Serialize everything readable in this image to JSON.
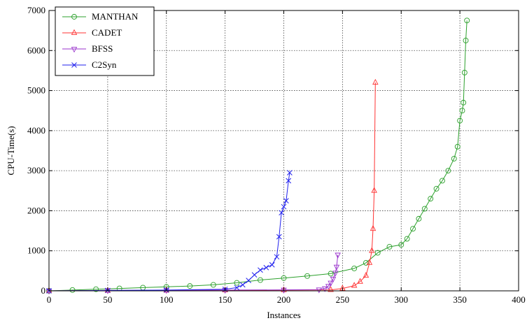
{
  "chart_data": {
    "type": "line",
    "title": "",
    "xlabel": "Instances",
    "ylabel": "CPU-Time(s)",
    "xlim": [
      0,
      400
    ],
    "ylim": [
      0,
      7000
    ],
    "x_ticks": [
      "0",
      "50",
      "100",
      "150",
      "200",
      "250",
      "300",
      "350",
      "400"
    ],
    "y_ticks": [
      "0",
      "1000",
      "2000",
      "3000",
      "4000",
      "5000",
      "6000",
      "7000"
    ],
    "grid": true,
    "legend_position": "top-left",
    "series": [
      {
        "name": "MANTHAN",
        "color": "#2ca02c",
        "marker": "circle",
        "points": [
          [
            0,
            0
          ],
          [
            20,
            20
          ],
          [
            40,
            40
          ],
          [
            60,
            60
          ],
          [
            80,
            80
          ],
          [
            100,
            100
          ],
          [
            120,
            120
          ],
          [
            140,
            150
          ],
          [
            160,
            200
          ],
          [
            180,
            270
          ],
          [
            200,
            320
          ],
          [
            220,
            370
          ],
          [
            240,
            430
          ],
          [
            260,
            560
          ],
          [
            270,
            700
          ],
          [
            280,
            950
          ],
          [
            290,
            1100
          ],
          [
            300,
            1150
          ],
          [
            305,
            1300
          ],
          [
            310,
            1550
          ],
          [
            315,
            1800
          ],
          [
            320,
            2050
          ],
          [
            325,
            2300
          ],
          [
            330,
            2550
          ],
          [
            335,
            2750
          ],
          [
            340,
            3000
          ],
          [
            345,
            3300
          ],
          [
            348,
            3600
          ],
          [
            350,
            4250
          ],
          [
            352,
            4500
          ],
          [
            353,
            4700
          ],
          [
            354,
            5450
          ],
          [
            355,
            6250
          ],
          [
            356,
            6750
          ]
        ]
      },
      {
        "name": "CADET",
        "color": "#ff3333",
        "marker": "triangle-up",
        "points": [
          [
            0,
            0
          ],
          [
            50,
            5
          ],
          [
            100,
            10
          ],
          [
            150,
            15
          ],
          [
            200,
            20
          ],
          [
            240,
            25
          ],
          [
            250,
            60
          ],
          [
            260,
            130
          ],
          [
            265,
            230
          ],
          [
            270,
            380
          ],
          [
            273,
            700
          ],
          [
            275,
            1000
          ],
          [
            276,
            1550
          ],
          [
            277,
            2500
          ],
          [
            278,
            5200
          ]
        ]
      },
      {
        "name": "BFSS",
        "color": "#9933cc",
        "marker": "triangle-down",
        "points": [
          [
            0,
            0
          ],
          [
            50,
            10
          ],
          [
            100,
            15
          ],
          [
            150,
            20
          ],
          [
            200,
            25
          ],
          [
            230,
            30
          ],
          [
            235,
            60
          ],
          [
            238,
            120
          ],
          [
            240,
            200
          ],
          [
            242,
            300
          ],
          [
            244,
            450
          ],
          [
            245,
            600
          ],
          [
            246,
            900
          ]
        ]
      },
      {
        "name": "C2Syn",
        "color": "#2222ee",
        "marker": "x",
        "points": [
          [
            0,
            0
          ],
          [
            50,
            10
          ],
          [
            100,
            20
          ],
          [
            150,
            40
          ],
          [
            160,
            80
          ],
          [
            165,
            150
          ],
          [
            170,
            260
          ],
          [
            175,
            400
          ],
          [
            180,
            520
          ],
          [
            185,
            580
          ],
          [
            190,
            650
          ],
          [
            194,
            850
          ],
          [
            196,
            1350
          ],
          [
            198,
            1950
          ],
          [
            200,
            2100
          ],
          [
            202,
            2250
          ],
          [
            204,
            2750
          ],
          [
            205,
            2950
          ]
        ]
      }
    ]
  }
}
